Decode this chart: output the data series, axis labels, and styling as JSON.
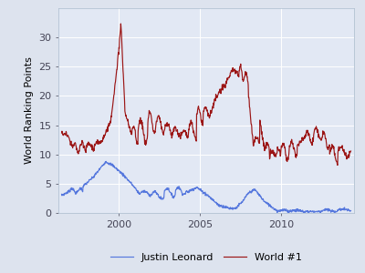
{
  "title": "",
  "ylabel": "World Ranking Points",
  "xlabel": "",
  "xlim": [
    1996.3,
    2014.5
  ],
  "ylim": [
    0,
    35
  ],
  "yticks": [
    0,
    5,
    10,
    15,
    20,
    25,
    30
  ],
  "xticks": [
    2000,
    2005,
    2010
  ],
  "background_color": "#dde3ee",
  "plot_bg_color": "#e2e8f4",
  "grid_color": "#ffffff",
  "line1_color": "#5577dd",
  "line2_color": "#9b1515",
  "line1_label": "Justin Leonard",
  "line2_label": "World #1",
  "line_width": 0.85,
  "tick_fontsize": 8,
  "ylabel_fontsize": 8,
  "legend_fontsize": 8
}
